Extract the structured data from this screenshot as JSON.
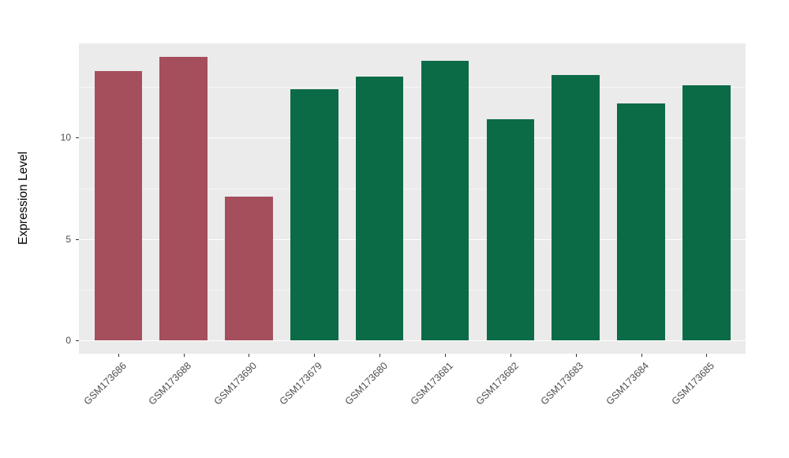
{
  "chart_data": {
    "type": "bar",
    "title": "",
    "xlabel": "",
    "ylabel": "Expression Level",
    "categories": [
      "GSM173686",
      "GSM173688",
      "GSM173690",
      "GSM173679",
      "GSM173680",
      "GSM173681",
      "GSM173682",
      "GSM173683",
      "GSM173684",
      "GSM173685"
    ],
    "values": [
      13.3,
      14.0,
      7.1,
      12.4,
      13.0,
      13.8,
      10.9,
      13.1,
      11.7,
      12.6
    ],
    "bar_colors": [
      "#A54E5C",
      "#A54E5C",
      "#A54E5C",
      "#0B6B47",
      "#0B6B47",
      "#0B6B47",
      "#0B6B47",
      "#0B6B47",
      "#0B6B47",
      "#0B6B47"
    ],
    "yticks": [
      0,
      5,
      10
    ],
    "yticks_minor": [
      2.5,
      7.5,
      12.5
    ],
    "ylim": [
      0,
      14.7
    ],
    "grid": true,
    "legend": "none",
    "panel_background": "#EBEBEB",
    "gridline_color": "#FFFFFF",
    "tick_label_color": "#4D4D4D",
    "axis_title_color": "#000000"
  }
}
